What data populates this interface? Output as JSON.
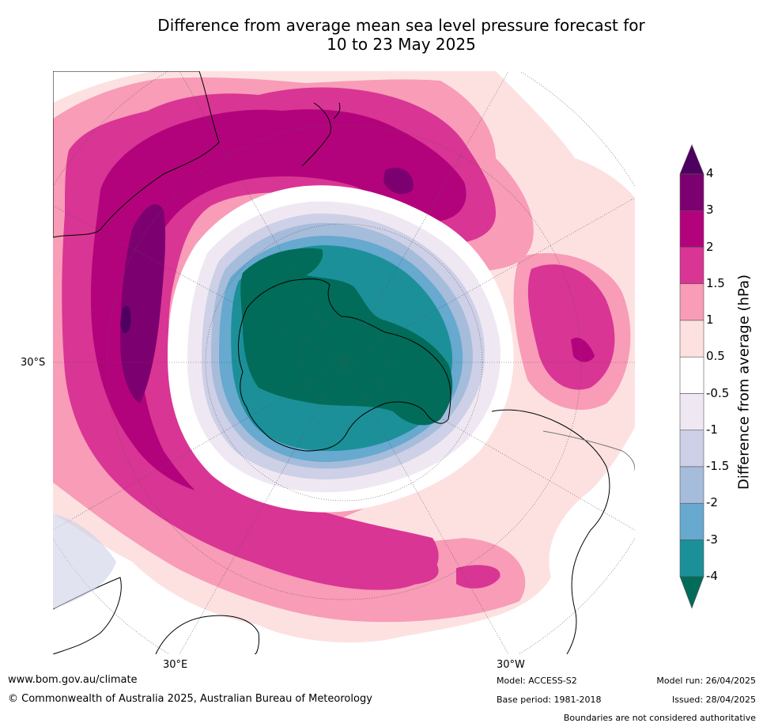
{
  "title_line1": "Difference from average mean sea level pressure forecast for",
  "title_line2": "10 to 23 May 2025",
  "map": {
    "projection": "south-polar-stereographic",
    "labels": {
      "lat_30s": "30°S",
      "lon_30e": "30°E",
      "lon_30w": "30°W"
    },
    "ocean_color": "#ffffff",
    "land_outline_color": "#000000"
  },
  "colorbar": {
    "title": "Difference from average (hPa)",
    "ticks": [
      "4",
      "3",
      "2",
      "1.5",
      "1",
      "0.5",
      "-0.5",
      "-1",
      "-1.5",
      "-2",
      "-3",
      "-4"
    ],
    "colors": [
      "#4d0060",
      "#7d0070",
      "#b3037c",
      "#d93594",
      "#f89cb8",
      "#fde1e1",
      "#ffffff",
      "#efe8f2",
      "#cdd0e6",
      "#a6bcdb",
      "#67a9cf",
      "#1c9099",
      "#016c59"
    ]
  },
  "footer": {
    "website": "www.bom.gov.au/climate",
    "copyright": "© Commonwealth of Australia 2025, Australian Bureau of Meteorology",
    "model": "Model: ACCESS-S2",
    "base_period": "Base period: 1981-2018",
    "model_run": "Model run: 26/04/2025",
    "issued": "Issued: 28/04/2025",
    "disclaimer": "Boundaries are not considered authoritative"
  }
}
